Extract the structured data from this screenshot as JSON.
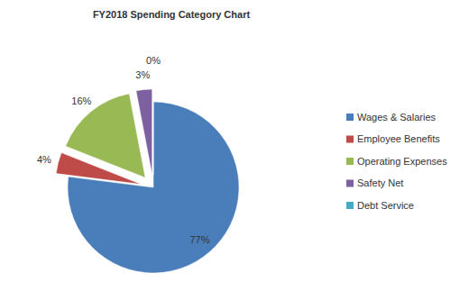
{
  "chart_data": {
    "type": "pie",
    "title": "FY2018 Spending Category Chart",
    "categories": [
      "Wages & Salaries",
      "Employee Benefits",
      "Operating Expenses",
      "Safety Net",
      "Debt Service"
    ],
    "values": [
      77,
      4,
      16,
      3,
      0
    ],
    "value_labels": [
      "77%",
      "4%",
      "16%",
      "3%",
      "0%"
    ],
    "colors": [
      "#4a7ebb",
      "#be4b48",
      "#98b954",
      "#7d60a0",
      "#46aac5"
    ],
    "data_labels": true,
    "legend": "right"
  }
}
